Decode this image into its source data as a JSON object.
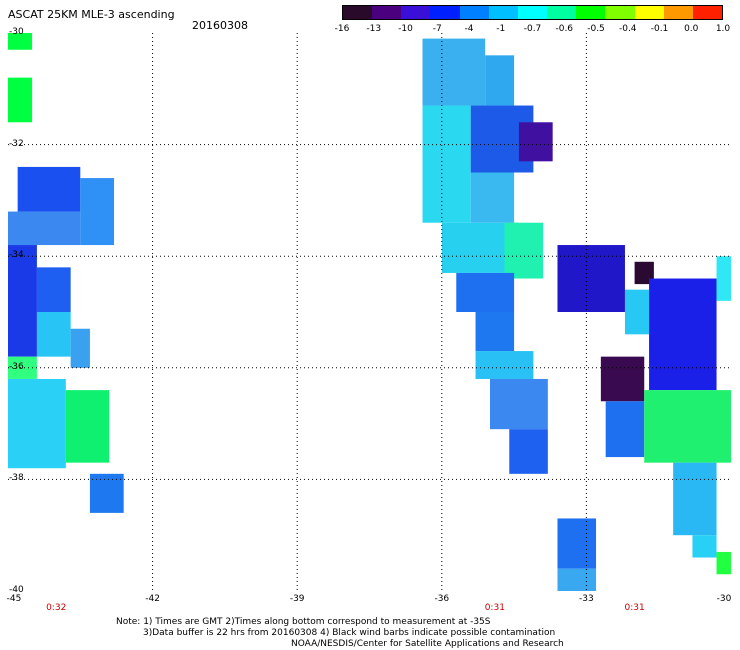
{
  "header": {
    "title": "ASCAT 25KM MLE-3 ascending",
    "date": "20160308"
  },
  "colorbar": {
    "labels": [
      "-16",
      "-13",
      "-10",
      "-7",
      "-4",
      "-1",
      "-0.7",
      "-0.6",
      "-0.5",
      "-0.4",
      "-0.1",
      "0.0",
      "1.0"
    ],
    "colors": [
      "#2a0a2a",
      "#4b0080",
      "#3a10d8",
      "#0020ff",
      "#0080ff",
      "#00c0ff",
      "#00ffff",
      "#00ffa0",
      "#00ff00",
      "#80ff00",
      "#ffff00",
      "#ff9900",
      "#ff2000"
    ]
  },
  "axes": {
    "y_labels": [
      "-30",
      "-32",
      "-34",
      "-36",
      "-38",
      "-40"
    ],
    "x_labels": [
      "-45",
      "-42",
      "-39",
      "-36",
      "-33",
      "-30"
    ],
    "lon_range": [
      -45,
      -30
    ],
    "lat_range": [
      -30,
      -40
    ],
    "grid": true
  },
  "time_labels": [
    {
      "text": "0:32",
      "lon": -44
    },
    {
      "text": "0:31",
      "lon": -34.9
    },
    {
      "text": "0:31",
      "lon": -32
    }
  ],
  "notes": {
    "line1": "Note: 1) Times are GMT 2)Times along bottom correspond to measurement at -35S",
    "line2": "3)Data buffer is 22 hrs from 20160308 4) Black wind barbs indicate possible contamination",
    "credit": "NOAA/NESDIS/Center for Satellite Applications and Research"
  },
  "swaths": [
    {
      "lon": [
        -45,
        -44.5
      ],
      "lat": [
        -30,
        -30.3
      ],
      "color": "#00ff40"
    },
    {
      "lon": [
        -45,
        -44.5
      ],
      "lat": [
        -30.8,
        -31.6
      ],
      "color": "#00ff40"
    },
    {
      "lon": [
        -44.8,
        -43.5
      ],
      "lat": [
        -32.4,
        -33.2
      ],
      "color": "#1a50f0"
    },
    {
      "lon": [
        -45,
        -43.5
      ],
      "lat": [
        -33.2,
        -33.8
      ],
      "color": "#3a88f0"
    },
    {
      "lon": [
        -43.5,
        -42.8
      ],
      "lat": [
        -32.6,
        -33.8
      ],
      "color": "#2f90f5"
    },
    {
      "lon": [
        -45,
        -44.4
      ],
      "lat": [
        -33.8,
        -35.8
      ],
      "color": "#1a3ae8"
    },
    {
      "lon": [
        -44.4,
        -43.7
      ],
      "lat": [
        -34.2,
        -35.0
      ],
      "color": "#1e5ef0"
    },
    {
      "lon": [
        -44.4,
        -43.7
      ],
      "lat": [
        -35.0,
        -35.8
      ],
      "color": "#28c4f5"
    },
    {
      "lon": [
        -43.7,
        -43.3
      ],
      "lat": [
        -35.3,
        -36.0
      ],
      "color": "#3aa0f0"
    },
    {
      "lon": [
        -45,
        -44.4
      ],
      "lat": [
        -35.8,
        -36.2
      ],
      "color": "#30ff80"
    },
    {
      "lon": [
        -45,
        -43.8
      ],
      "lat": [
        -36.2,
        -37.8
      ],
      "color": "#2ad0f5"
    },
    {
      "lon": [
        -43.8,
        -42.9
      ],
      "lat": [
        -36.4,
        -37.7
      ],
      "color": "#10f070"
    },
    {
      "lon": [
        -43.3,
        -42.6
      ],
      "lat": [
        -37.9,
        -38.6
      ],
      "color": "#1e78f0"
    },
    {
      "lon": [
        -36.4,
        -35.1
      ],
      "lat": [
        -30.1,
        -31.3
      ],
      "color": "#3ab0f0"
    },
    {
      "lon": [
        -35.1,
        -34.5
      ],
      "lat": [
        -30.4,
        -31.3
      ],
      "color": "#30a8f0"
    },
    {
      "lon": [
        -36.4,
        -35.4
      ],
      "lat": [
        -31.3,
        -33.4
      ],
      "color": "#2ad8f0"
    },
    {
      "lon": [
        -35.4,
        -34.1
      ],
      "lat": [
        -31.3,
        -32.5
      ],
      "color": "#1d5ae8"
    },
    {
      "lon": [
        -34.4,
        -33.7
      ],
      "lat": [
        -31.6,
        -32.3
      ],
      "color": "#4010a0"
    },
    {
      "lon": [
        -35.4,
        -34.5
      ],
      "lat": [
        -32.5,
        -33.4
      ],
      "color": "#3ab8f0"
    },
    {
      "lon": [
        -36,
        -34.4
      ],
      "lat": [
        -33.4,
        -34.3
      ],
      "color": "#28d0f0"
    },
    {
      "lon": [
        -34.7,
        -33.9
      ],
      "lat": [
        -33.4,
        -34.4
      ],
      "color": "#20f0b0"
    },
    {
      "lon": [
        -35.7,
        -34.5
      ],
      "lat": [
        -34.3,
        -35.0
      ],
      "color": "#1e70f0"
    },
    {
      "lon": [
        -33.6,
        -32.2
      ],
      "lat": [
        -33.8,
        -35.0
      ],
      "color": "#2018c8"
    },
    {
      "lon": [
        -32.0,
        -31.6
      ],
      "lat": [
        -34.1,
        -34.5
      ],
      "color": "#2a0a30"
    },
    {
      "lon": [
        -32.2,
        -31.7
      ],
      "lat": [
        -34.6,
        -35.4
      ],
      "color": "#28c8f5"
    },
    {
      "lon": [
        -31.7,
        -30.3
      ],
      "lat": [
        -34.4,
        -36.4
      ],
      "color": "#1a20e8"
    },
    {
      "lon": [
        -30.3,
        -30
      ],
      "lat": [
        -34.0,
        -34.8
      ],
      "color": "#30e8f5"
    },
    {
      "lon": [
        -35.3,
        -34.5
      ],
      "lat": [
        -35.0,
        -35.7
      ],
      "color": "#1e78f0"
    },
    {
      "lon": [
        -35.3,
        -34.1
      ],
      "lat": [
        -35.7,
        -36.2
      ],
      "color": "#28c0f5"
    },
    {
      "lon": [
        -35.0,
        -33.8
      ],
      "lat": [
        -36.2,
        -37.1
      ],
      "color": "#3a88f0"
    },
    {
      "lon": [
        -34.6,
        -33.8
      ],
      "lat": [
        -37.1,
        -37.9
      ],
      "color": "#1e60f0"
    },
    {
      "lon": [
        -32.7,
        -31.8
      ],
      "lat": [
        -35.8,
        -36.6
      ],
      "color": "#3a0a50"
    },
    {
      "lon": [
        -32.6,
        -31.8
      ],
      "lat": [
        -36.6,
        -37.6
      ],
      "color": "#1e70f0"
    },
    {
      "lon": [
        -31.8,
        -30
      ],
      "lat": [
        -36.4,
        -37.7
      ],
      "color": "#20f070"
    },
    {
      "lon": [
        -31.2,
        -30.3
      ],
      "lat": [
        -37.7,
        -39.0
      ],
      "color": "#2ab8f5"
    },
    {
      "lon": [
        -30.8,
        -30.3
      ],
      "lat": [
        -39.0,
        -39.4
      ],
      "color": "#28d0f5"
    },
    {
      "lon": [
        -30.3,
        -30
      ],
      "lat": [
        -39.3,
        -39.7
      ],
      "color": "#20ff40"
    },
    {
      "lon": [
        -33.6,
        -32.8
      ],
      "lat": [
        -38.7,
        -39.6
      ],
      "color": "#1e70f0"
    },
    {
      "lon": [
        -33.6,
        -32.8
      ],
      "lat": [
        -39.6,
        -40
      ],
      "color": "#3aa8f0"
    }
  ]
}
